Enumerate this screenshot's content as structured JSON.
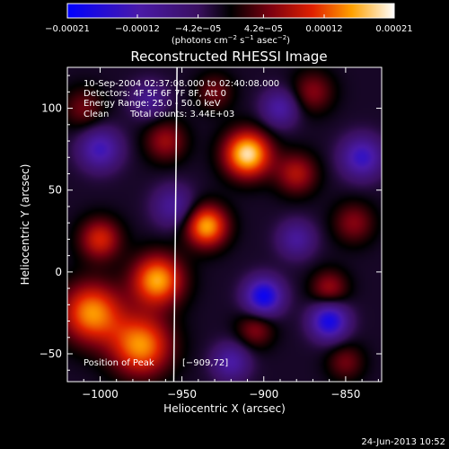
{
  "chart_data": {
    "type": "heatmap",
    "title": "Reconstructed RHESSI Image",
    "xlabel": "Heliocentric X (arcsec)",
    "ylabel": "Heliocentric Y (arcsec)",
    "xlim": [
      -1020,
      -828
    ],
    "ylim": [
      -67,
      125
    ],
    "x_ticks": [
      -1000,
      -950,
      -900,
      -850
    ],
    "y_ticks": [
      -50,
      0,
      50,
      100
    ],
    "x_tick_labels": [
      "−1000",
      "−950",
      "−900",
      "−850"
    ],
    "y_tick_labels": [
      "−50",
      "0",
      "50",
      "100"
    ],
    "colorbar": {
      "min": -0.00021,
      "max": 0.00021,
      "ticks": [
        -0.00021,
        -0.00012,
        -4.2e-05,
        4.2e-05,
        0.00012,
        0.00021
      ],
      "tick_labels": [
        "−0.00021",
        "−0.00012",
        "−4.2e−05",
        "4.2e−05",
        "0.00012",
        "0.00021"
      ],
      "unit_label": {
        "text": "(photons cm",
        "sup1": "−2",
        "mid": " s",
        "sup2": "−1",
        "tail": " asec",
        "sup3": "−2",
        "end": ")"
      }
    },
    "annotations": {
      "time_range": "10-Sep-2004 02:37:08.000 to 02:40:08.000",
      "detectors": "Detectors: 4F 5F 6F 7F 8F, Att 0",
      "energy_range": "Energy Range: 25.0 - 50.0 keV",
      "clean_label": "Clean",
      "total_counts": "Total counts: 3.44E+03",
      "position_label": "Position of Peak",
      "position_value": "[−909,72]"
    },
    "limb_line": {
      "x_start": -953,
      "y_start": 125,
      "x_end": -955,
      "y_end": -67,
      "color": "#ffffff"
    },
    "sources": [
      {
        "x": -910,
        "y": 72,
        "sigma": 10,
        "amp": 1.0
      },
      {
        "x": -935,
        "y": 28,
        "sigma": 9,
        "amp": 0.85
      },
      {
        "x": -965,
        "y": -5,
        "sigma": 11,
        "amp": 0.85
      },
      {
        "x": -1005,
        "y": -25,
        "sigma": 13,
        "amp": 0.8
      },
      {
        "x": -975,
        "y": -45,
        "sigma": 13,
        "amp": 0.8
      },
      {
        "x": -1000,
        "y": 20,
        "sigma": 9,
        "amp": 0.55
      },
      {
        "x": -880,
        "y": 60,
        "sigma": 9,
        "amp": 0.45
      },
      {
        "x": -960,
        "y": 80,
        "sigma": 9,
        "amp": 0.4
      },
      {
        "x": -860,
        "y": -10,
        "sigma": 8,
        "amp": 0.4
      },
      {
        "x": -905,
        "y": -35,
        "sigma": 8,
        "amp": 0.35
      },
      {
        "x": -845,
        "y": 30,
        "sigma": 9,
        "amp": 0.35
      },
      {
        "x": -870,
        "y": 110,
        "sigma": 9,
        "amp": 0.35
      },
      {
        "x": -1010,
        "y": 100,
        "sigma": 9,
        "amp": 0.3
      },
      {
        "x": -930,
        "y": 110,
        "sigma": 8,
        "amp": 0.3
      },
      {
        "x": -850,
        "y": -55,
        "sigma": 8,
        "amp": 0.3
      },
      {
        "x": -1000,
        "y": 75,
        "sigma": 9,
        "amp": -0.55
      },
      {
        "x": -900,
        "y": -15,
        "sigma": 8,
        "amp": -0.85
      },
      {
        "x": -860,
        "y": -30,
        "sigma": 8,
        "amp": -0.8
      },
      {
        "x": -840,
        "y": 70,
        "sigma": 9,
        "amp": -0.6
      },
      {
        "x": -955,
        "y": 40,
        "sigma": 9,
        "amp": -0.4
      },
      {
        "x": -890,
        "y": 100,
        "sigma": 8,
        "amp": -0.45
      },
      {
        "x": -920,
        "y": -55,
        "sigma": 8,
        "amp": -0.45
      },
      {
        "x": -970,
        "y": 105,
        "sigma": 8,
        "amp": -0.35
      },
      {
        "x": -880,
        "y": 20,
        "sigma": 8,
        "amp": -0.4
      }
    ],
    "grid": false,
    "legend": "none"
  },
  "footer": {
    "timestamp": "24-Jun-2013 10:52"
  }
}
